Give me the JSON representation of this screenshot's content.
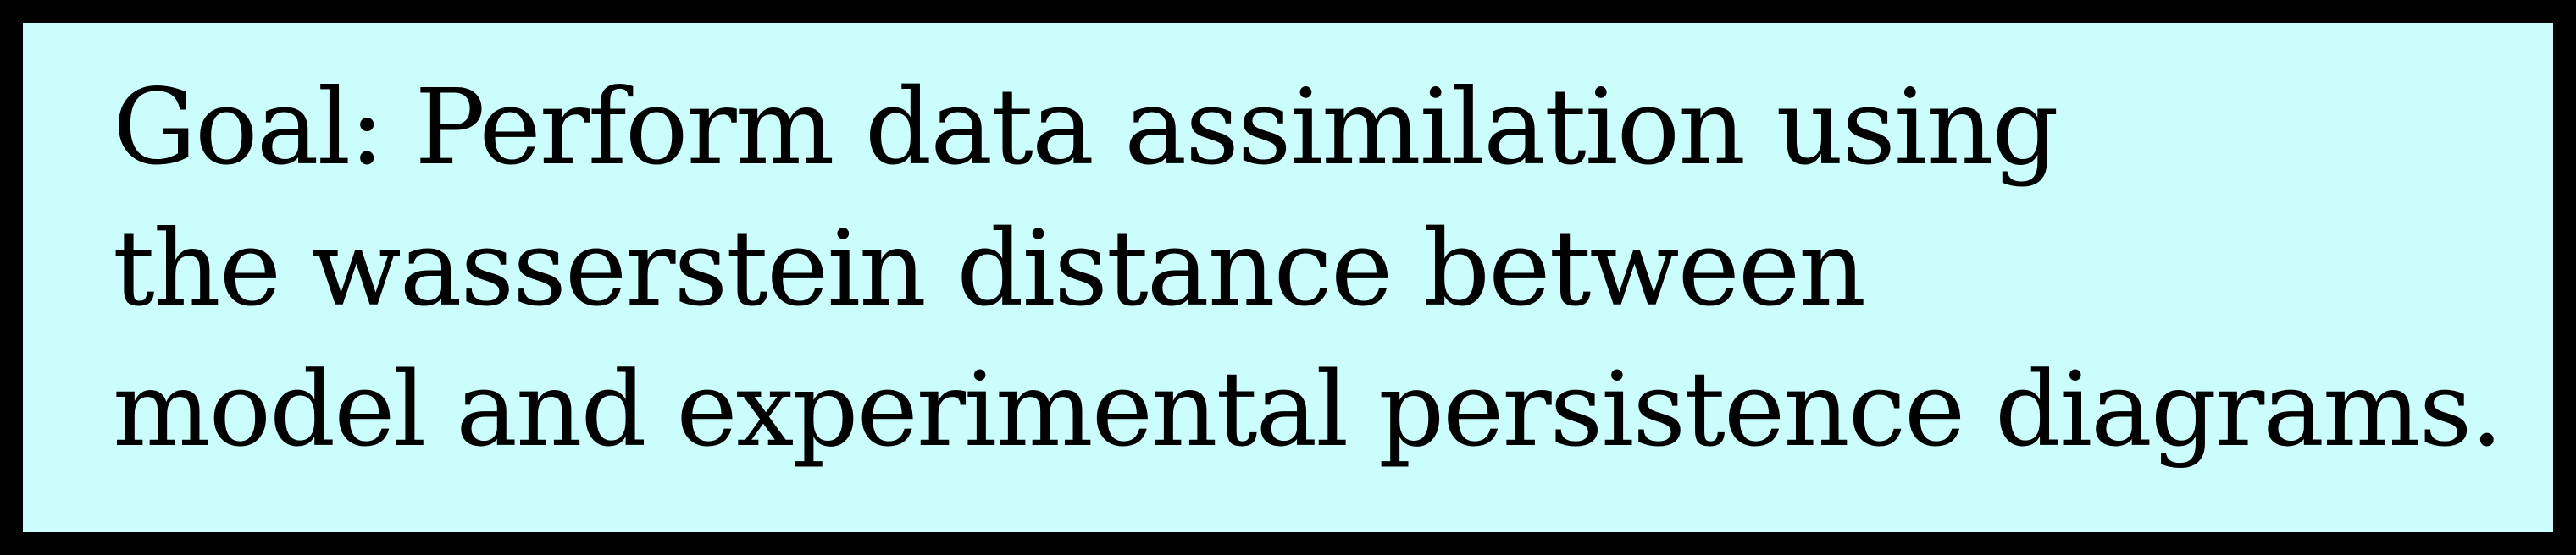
{
  "box": {
    "background_color": "#ccfdfd",
    "border_color": "#000000",
    "lines": [
      "Goal: Perform data assimilation using",
      "the wasserstein distance between",
      "model and experimental persistence diagrams."
    ]
  }
}
